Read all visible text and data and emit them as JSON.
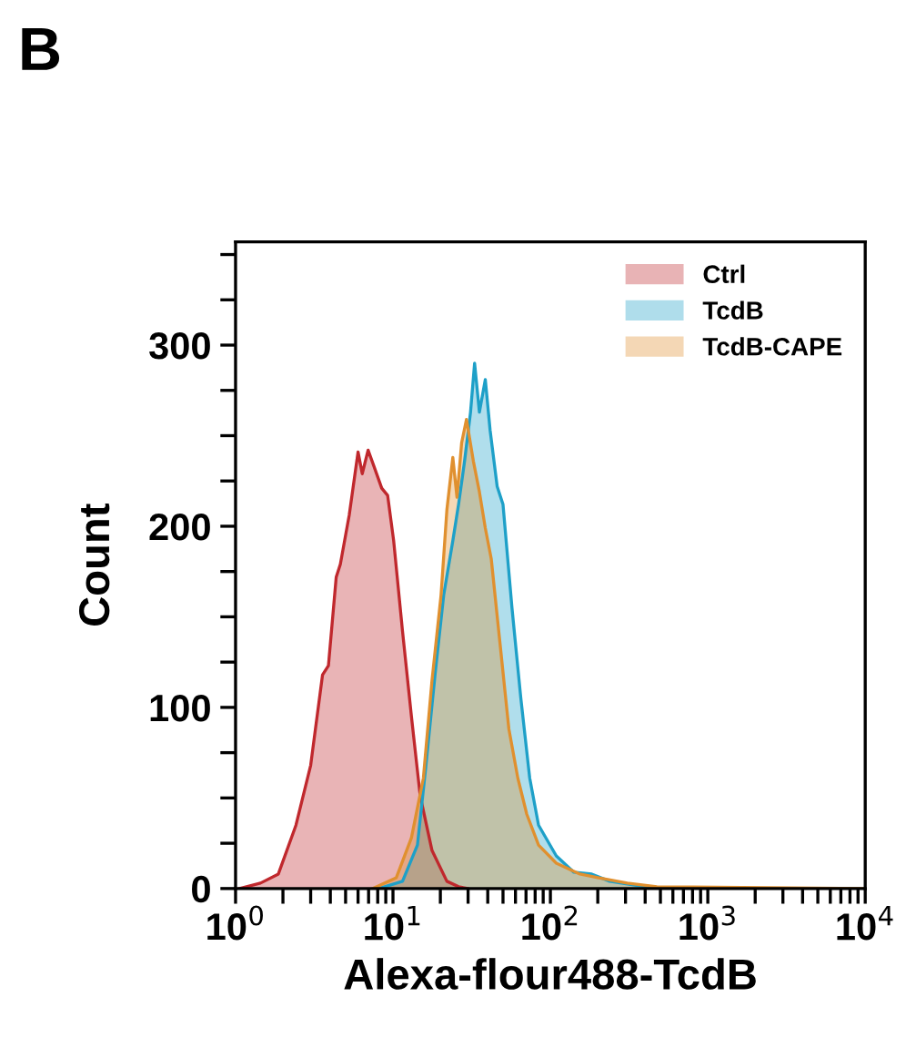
{
  "chart_data": {
    "type": "area",
    "xlabel": "Alexa-flour488-TcdB",
    "ylabel": "Count",
    "annotations": [
      "B"
    ],
    "log": "x",
    "legend": "top right",
    "grid": false,
    "xlim": [
      1,
      10000
    ],
    "ylim": [
      0,
      357
    ],
    "xticks": [
      {
        "value": 1,
        "label": "10$^{0}$"
      },
      {
        "value": 2,
        "label": null
      },
      {
        "value": 3,
        "label": null
      },
      {
        "value": 4,
        "label": null
      },
      {
        "value": 5,
        "label": null
      },
      {
        "value": 6,
        "label": null
      },
      {
        "value": 7,
        "label": null
      },
      {
        "value": 8,
        "label": null
      },
      {
        "value": 9,
        "label": null
      },
      {
        "value": 10,
        "label": "10$^{1}$"
      },
      {
        "value": 20,
        "label": null
      },
      {
        "value": 30,
        "label": null
      },
      {
        "value": 40,
        "label": null
      },
      {
        "value": 50,
        "label": null
      },
      {
        "value": 60,
        "label": null
      },
      {
        "value": 70,
        "label": null
      },
      {
        "value": 80,
        "label": null
      },
      {
        "value": 90,
        "label": null
      },
      {
        "value": 100,
        "label": "10$^{2}$"
      },
      {
        "value": 200,
        "label": null
      },
      {
        "value": 300,
        "label": null
      },
      {
        "value": 400,
        "label": null
      },
      {
        "value": 500,
        "label": null
      },
      {
        "value": 600,
        "label": null
      },
      {
        "value": 700,
        "label": null
      },
      {
        "value": 800,
        "label": null
      },
      {
        "value": 900,
        "label": null
      },
      {
        "value": 1000,
        "label": "10$^{3}$"
      },
      {
        "value": 2000,
        "label": null
      },
      {
        "value": 3000,
        "label": null
      },
      {
        "value": 4000,
        "label": null
      },
      {
        "value": 5000,
        "label": null
      },
      {
        "value": 6000,
        "label": null
      },
      {
        "value": 7000,
        "label": null
      },
      {
        "value": 8000,
        "label": null
      },
      {
        "value": 9000,
        "label": null
      },
      {
        "value": 10000,
        "label": "10$^{4}$"
      }
    ],
    "yticks": [
      0,
      {
        "value": 25,
        "label": null
      },
      {
        "value": 50,
        "label": null
      },
      {
        "value": 75,
        "label": null
      },
      100,
      {
        "value": 125,
        "label": null
      },
      {
        "value": 150,
        "label": null
      },
      {
        "value": 175,
        "label": null
      },
      200,
      {
        "value": 225,
        "label": null
      },
      {
        "value": 250,
        "label": null
      },
      {
        "value": 275,
        "label": null
      },
      300,
      {
        "value": 325,
        "label": null
      },
      {
        "value": 350,
        "label": null
      }
    ],
    "series": [
      {
        "name": "Ctrl",
        "color": "#c0282d",
        "x": [
          1.06,
          1.44,
          1.87,
          2.42,
          3.0,
          3.57,
          3.89,
          4.36,
          4.63,
          5.27,
          6.0,
          6.38,
          6.95,
          7.58,
          8.48,
          9.25,
          10.1,
          11.5,
          13.1,
          14.9,
          17.7,
          22.0,
          26.1,
          29.8
        ],
        "values": [
          0,
          3,
          8,
          35,
          68,
          118,
          123,
          172,
          179,
          206,
          241,
          229,
          242,
          233,
          221,
          217,
          192,
          142,
          95,
          51,
          21,
          4,
          1,
          0
        ]
      },
      {
        "name": "TcdB",
        "color": "#1ea0c8",
        "x": [
          8.13,
          11.5,
          14.3,
          16.2,
          18.5,
          21.0,
          24.0,
          26.1,
          28.5,
          31.1,
          33.0,
          35.4,
          38.6,
          41.4,
          45.9,
          50.0,
          57.0,
          64.9,
          73.9,
          84.1,
          109,
          141,
          183,
          238,
          400,
          615
        ],
        "values": [
          0,
          4,
          24,
          68,
          118,
          162,
          192,
          212,
          236,
          263,
          290,
          263,
          281,
          253,
          222,
          212,
          155,
          105,
          61,
          35,
          18,
          9,
          8,
          4,
          1,
          0
        ]
      },
      {
        "name": "TcdB-CAPE",
        "color": "#e0902f",
        "x": [
          7.45,
          10.5,
          13.1,
          15.6,
          17.7,
          20.2,
          22.0,
          24.0,
          25.5,
          27.3,
          29.3,
          32.4,
          35.4,
          38.6,
          42.1,
          47.9,
          54.5,
          62.1,
          70.8,
          84.1,
          109,
          154,
          200,
          308,
          475,
          9820
        ],
        "values": [
          0,
          6,
          28,
          61,
          115,
          162,
          209,
          238,
          216,
          246,
          259,
          236,
          219,
          199,
          182,
          135,
          88,
          61,
          41,
          24,
          14,
          8,
          6,
          3,
          1,
          0
        ]
      }
    ]
  }
}
